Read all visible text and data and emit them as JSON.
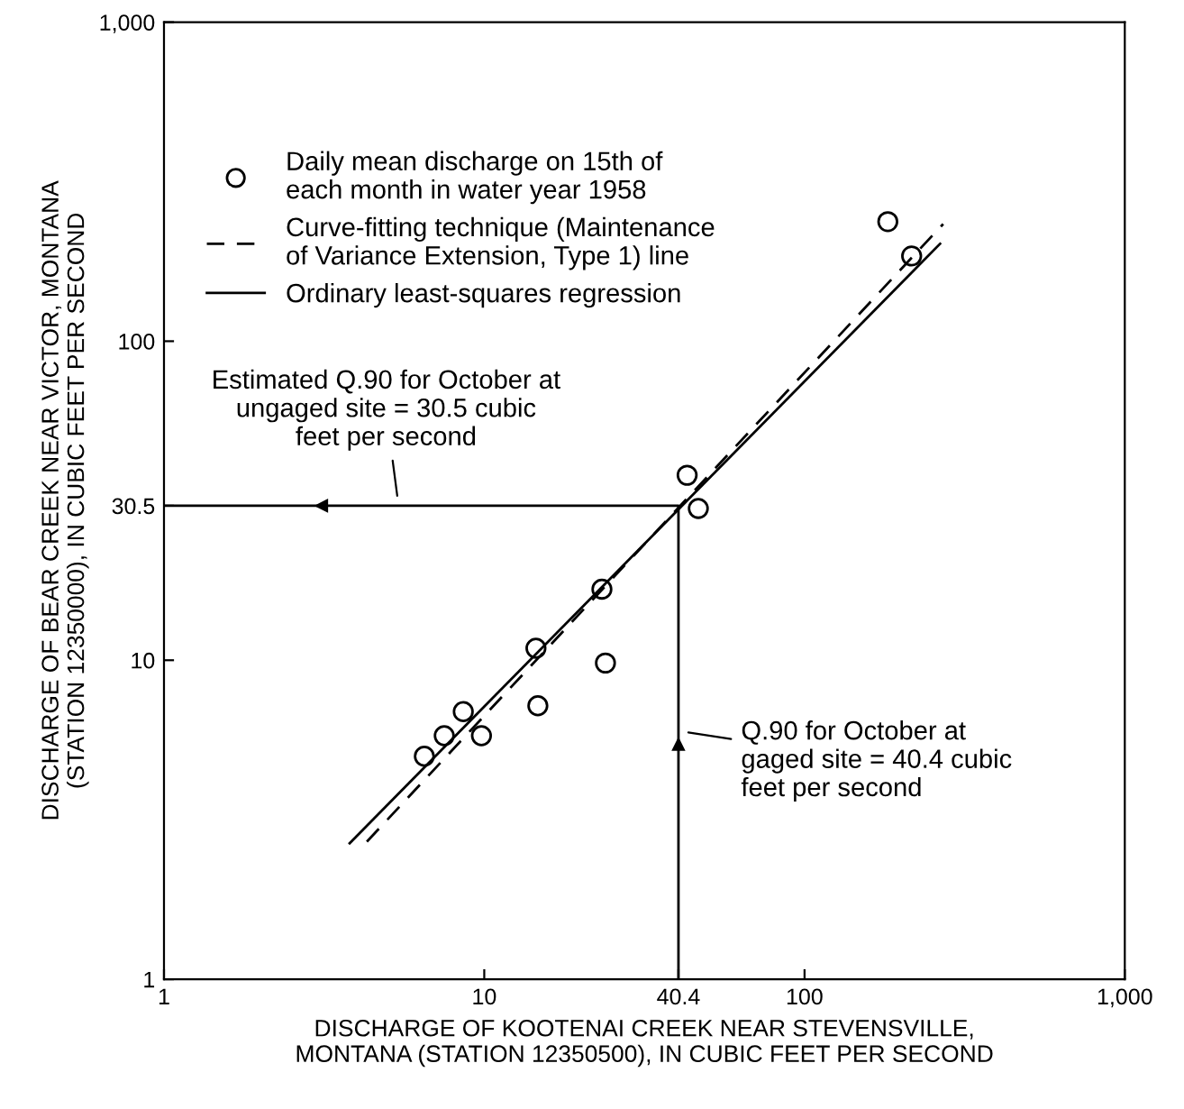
{
  "chart_data": {
    "type": "scatter",
    "xlabel": "DISCHARGE OF KOOTENAI CREEK NEAR STEVENSVILLE,\nMONTANA (STATION 12350500), IN CUBIC FEET PER SECOND",
    "ylabel": "DISCHARGE OF BEAR CREEK NEAR VICTOR, MONTANA\n(STATION 12350000), IN CUBIC FEET PER SECOND",
    "log": "xy",
    "xlim": [
      1,
      1000
    ],
    "ylim": [
      1,
      1000
    ],
    "xticks": [
      1,
      10,
      40.4,
      100,
      {
        "value": 1000,
        "label": "1,000"
      }
    ],
    "yticks": [
      1,
      10,
      30.5,
      100,
      {
        "value": 1000,
        "label": "1,000"
      }
    ],
    "grid": false,
    "legend": "top left",
    "series": [
      {
        "name": "Daily mean discharge on 15th of\neach month in water year 1958",
        "color": "#000000",
        "marker": "circle",
        "x": [
          182,
          216,
          43,
          46.6,
          23.3,
          14.5,
          23.9,
          14.7,
          8.6,
          9.8,
          7.5,
          6.5
        ],
        "values": [
          237,
          185,
          38,
          29.9,
          16.7,
          10.9,
          9.8,
          7.2,
          6.9,
          5.8,
          5.8,
          5.0
        ]
      },
      {
        "type": "line",
        "name": "Curve-fitting technique (Maintenance\nof Variance Extension, Type 1) line",
        "color": "#000000",
        "line_style": "dashed",
        "x": [
          4.3,
          271
        ],
        "values": [
          2.7,
          233
        ]
      },
      {
        "type": "line",
        "name": "Ordinary least-squares regression",
        "color": "#000000",
        "line_style": "solid",
        "x": [
          3.8,
          265
        ],
        "values": [
          2.67,
          202
        ]
      },
      {
        "type": "line",
        "color": "#000000",
        "line_style": "solid",
        "x": [
          1,
          40.4,
          40.4
        ],
        "values": [
          30.5,
          30.5,
          1
        ]
      }
    ],
    "annotations": [
      {
        "text": "Estimated Q.90 for October at\nungaged site = 30.5 cubic\nfeet per second",
        "x": 5.4,
        "y": 30.5
      },
      {
        "text": "Q.90 for October at\ngaged site = 40.4 cubic\nfeet per second",
        "x": 40.4,
        "y": 6.0
      }
    ]
  }
}
